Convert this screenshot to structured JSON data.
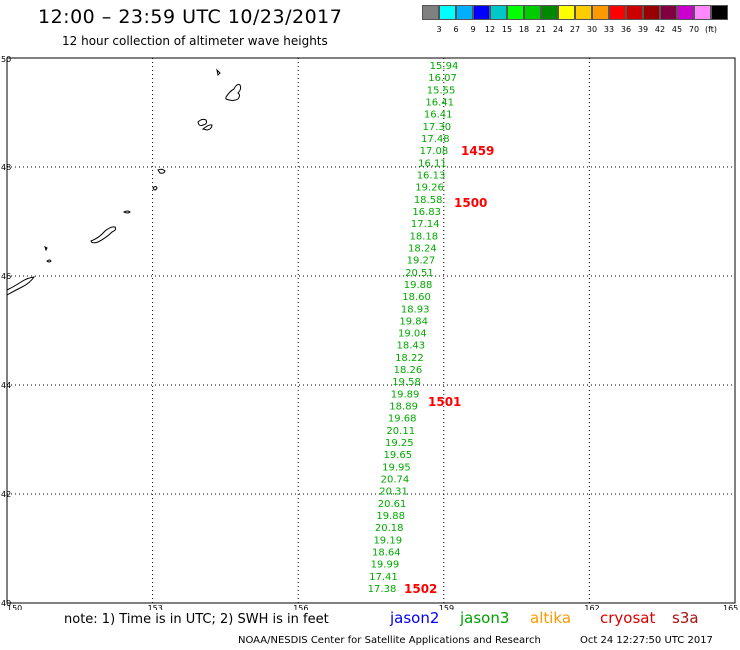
{
  "header": {
    "title": "12:00 – 23:59 UTC 10/23/2017",
    "subtitle": "12 hour collection of altimeter wave heights"
  },
  "color_scale": {
    "colors": [
      "#808080",
      "#00ffff",
      "#00b0ff",
      "#0000ff",
      "#00c8c8",
      "#00ff00",
      "#00cc00",
      "#008800",
      "#ffff00",
      "#ffcc00",
      "#ff9900",
      "#ff0000",
      "#cc0000",
      "#990000",
      "#800040",
      "#cc00cc",
      "#ff88ff",
      "#000000"
    ],
    "labels": [
      "3",
      "6",
      "9",
      "12",
      "15",
      "18",
      "21",
      "24",
      "27",
      "30",
      "33",
      "36",
      "39",
      "42",
      "45",
      "70",
      "(ft)"
    ]
  },
  "map": {
    "lon_labels": [
      "150",
      "153",
      "156",
      "159",
      "162",
      "165"
    ],
    "lat_labels": [
      "50",
      "48",
      "46",
      "44",
      "42",
      "40"
    ],
    "wave_color": "#00aa00",
    "time_color": "#ff0000",
    "wave_heights": [
      "15.94",
      "16.07",
      "15.55",
      "16.41",
      "16.41",
      "17.30",
      "17.48",
      "17.08",
      "16.11",
      "16.13",
      "19.26",
      "18.58",
      "16.83",
      "17.14",
      "18.18",
      "18.24",
      "19.27",
      "20.51",
      "19.88",
      "18.60",
      "18.93",
      "19.84",
      "19.04",
      "18.43",
      "18.22",
      "18.26",
      "19.58",
      "19.89",
      "18.89",
      "19.68",
      "20.11",
      "19.25",
      "19.65",
      "19.95",
      "20.74",
      "20.31",
      "20.61",
      "19.88",
      "20.18",
      "19.19",
      "18.64",
      "19.99",
      "17.41",
      "17.38"
    ],
    "time_labels": [
      "1459",
      "1500",
      "1501",
      "1502"
    ]
  },
  "footer": {
    "note": "note:  1) Time is in UTC;  2) SWH is in feet",
    "satellites": [
      {
        "name": "jason2",
        "color": "#0000ee"
      },
      {
        "name": "jason3",
        "color": "#00a000"
      },
      {
        "name": "altika",
        "color": "#ff9900"
      },
      {
        "name": "cryosat",
        "color": "#dd0000"
      },
      {
        "name": "s3a",
        "color": "#aa1111"
      }
    ],
    "credit": "NOAA/NESDIS Center for Satellite Applications and Research",
    "timestamp": "Oct 24 12:27:50 UTC 2017"
  }
}
